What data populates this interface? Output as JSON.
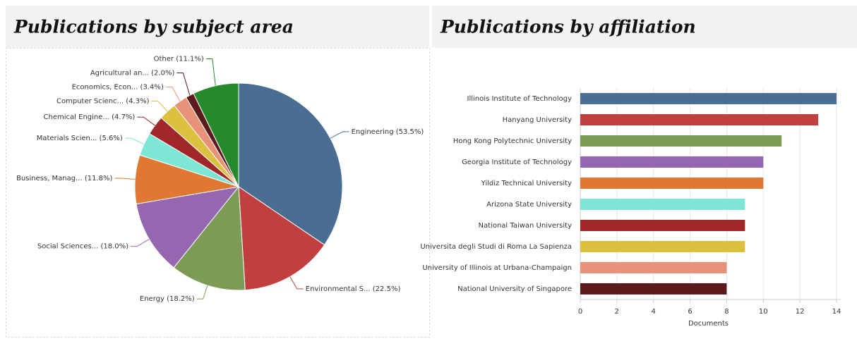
{
  "chart_data": [
    {
      "type": "pie",
      "title": "Publications by subject area",
      "categories": [
        "Engineering",
        "Environmental S...",
        "Energy",
        "Social Sciences...",
        "Business, Manag...",
        "Materials Scien...",
        "Chemical Engine...",
        "Computer Scienc...",
        "Economics, Econ...",
        "Agricultural an...",
        "Other"
      ],
      "values": [
        53.5,
        22.5,
        18.2,
        18.0,
        11.8,
        5.6,
        4.7,
        4.3,
        3.4,
        2.0,
        11.1
      ],
      "value_labels": [
        "(53.5%)",
        "(22.5%)",
        "(18.2%)",
        "(18.0%)",
        "(11.8%)",
        "(5.6%)",
        "(4.7%)",
        "(4.3%)",
        "(3.4%)",
        "(2.0%)",
        "(11.1%)"
      ],
      "colors": [
        "#4a6d92",
        "#c0403f",
        "#7d9b56",
        "#9467b0",
        "#de7833",
        "#7de6d5",
        "#a1282a",
        "#dcc040",
        "#e8927a",
        "#5c1a1d",
        "#268a2d"
      ]
    },
    {
      "type": "bar",
      "orientation": "horizontal",
      "title": "Publications by affiliation",
      "categories": [
        "Illinois Institute of Technology",
        "Hanyang University",
        "Hong Kong Polytechnic University",
        "Georgia Institute of Technology",
        "Yildiz Technical University",
        "Arizona State University",
        "National Taiwan University",
        "Universita degli Studi di Roma La Sapienza",
        "University of Illinois at Urbana-Champaign",
        "National University of Singapore"
      ],
      "values": [
        14,
        13,
        11,
        10,
        10,
        9,
        9,
        9,
        8,
        8
      ],
      "colors": [
        "#4a6d92",
        "#c0403f",
        "#7d9b56",
        "#9467b0",
        "#de7833",
        "#7de6d5",
        "#a1282a",
        "#dcc040",
        "#e8927a",
        "#5c1a1d"
      ],
      "xlim": [
        0,
        14
      ],
      "xticks": [
        0,
        2,
        4,
        6,
        8,
        10,
        12,
        14
      ],
      "xlabel": "Documents",
      "grid": true
    }
  ]
}
